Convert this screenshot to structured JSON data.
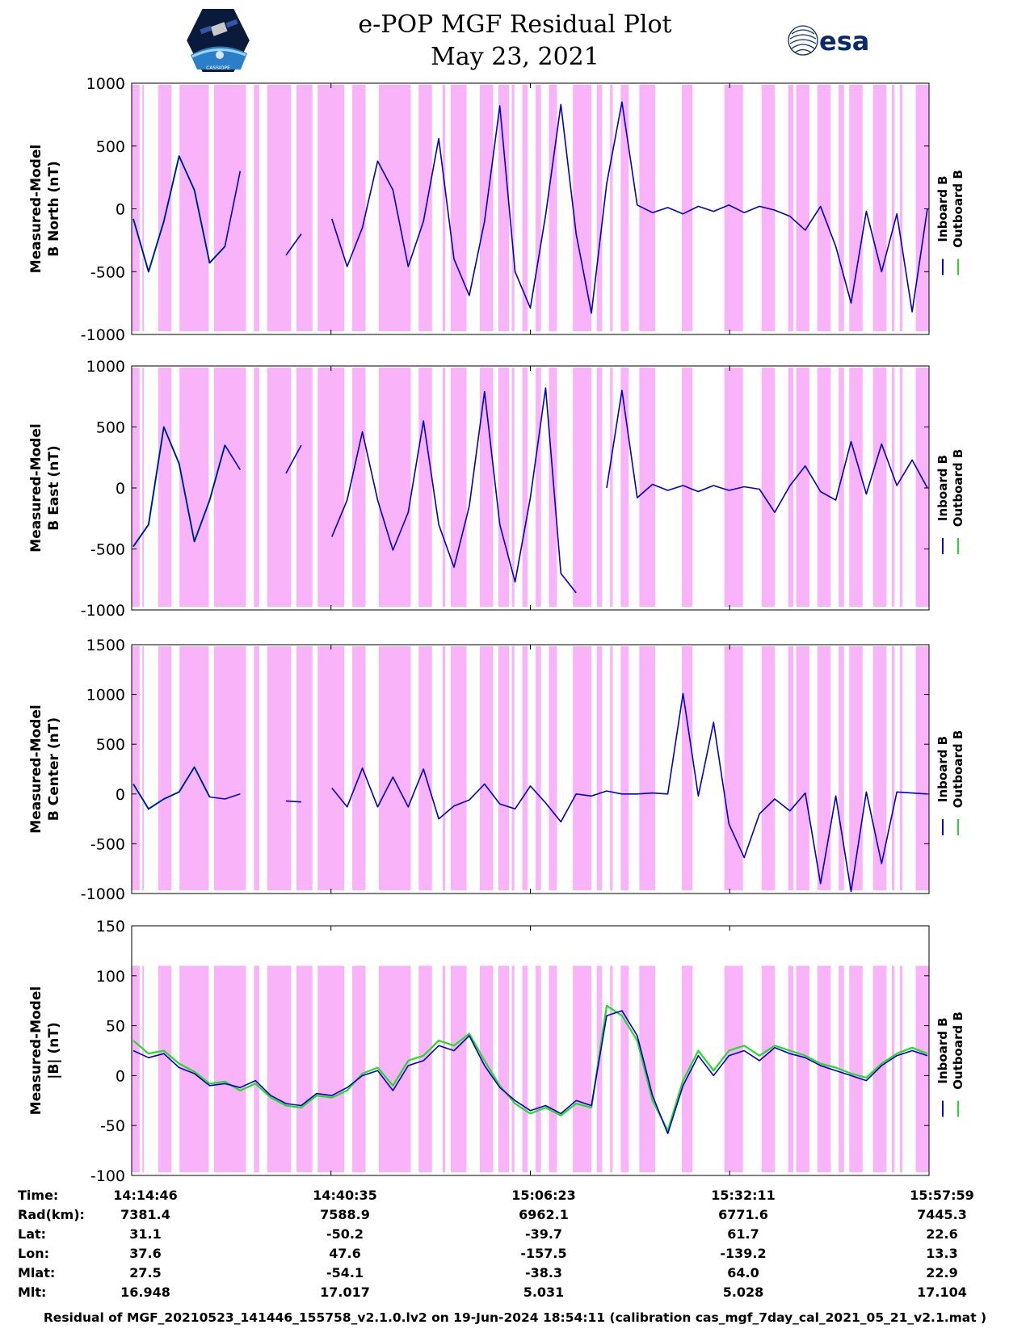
{
  "header": {
    "title_line1": "e-POP MGF Residual Plot",
    "title_line2": "May 23, 2021",
    "left_logo": "e-POP mission patch",
    "left_logo_text": "CASSIOPE",
    "right_logo": "esa-logo",
    "right_logo_text": "esa"
  },
  "colors": {
    "inboard": "#0000cc",
    "outboard": "#22dd22",
    "gap_shading": "#f9b4f9"
  },
  "legend": {
    "inboard": "Inboard B",
    "outboard": "Outboard B"
  },
  "chart_data": [
    {
      "type": "line",
      "ylabel_line1": "Measured-Model",
      "ylabel_line2": "B North (nT)",
      "ylim": [
        -1000,
        1000
      ],
      "yticks": [
        -1000,
        -500,
        0,
        500,
        1000
      ],
      "series": [
        {
          "name": "Inboard B",
          "color": "#0000cc",
          "x": [
            0,
            2,
            4,
            6,
            8,
            10,
            12,
            14,
            16,
            18,
            20,
            22,
            24,
            26,
            28,
            30,
            32,
            34,
            36,
            38,
            40,
            42,
            44,
            46,
            48,
            50,
            52,
            54,
            56,
            58,
            60,
            62,
            64,
            66,
            68,
            70,
            72,
            74,
            76,
            78,
            80,
            82,
            84,
            86,
            88,
            90,
            92,
            94,
            96,
            98,
            100,
            102,
            104
          ],
          "y": [
            -80,
            -500,
            -100,
            420,
            150,
            -430,
            -300,
            300,
            "null",
            "null",
            -370,
            -200,
            "null",
            -80,
            -460,
            -150,
            380,
            150,
            -460,
            -100,
            560,
            -400,
            -690,
            -100,
            820,
            -500,
            -790,
            -50,
            830,
            -200,
            -830,
            200,
            850,
            30,
            -30,
            10,
            -40,
            20,
            -20,
            30,
            -30,
            20,
            -10,
            -60,
            -170,
            20,
            -300,
            -750,
            -20,
            -500,
            -40,
            -820,
            0
          ]
        },
        {
          "name": "Outboard B",
          "color": "#22dd22",
          "x": [
            0,
            2,
            4,
            6,
            8,
            10,
            12
          ],
          "y": [
            -80,
            -500,
            -100,
            420,
            150,
            -430,
            -300
          ]
        }
      ]
    },
    {
      "type": "line",
      "ylabel_line1": "Measured-Model",
      "ylabel_line2": "B East (nT)",
      "ylim": [
        -1000,
        1000
      ],
      "yticks": [
        -1000,
        -500,
        0,
        500,
        1000
      ],
      "series": [
        {
          "name": "Inboard B",
          "color": "#0000cc",
          "x": [
            0,
            2,
            4,
            6,
            8,
            10,
            12,
            14,
            16,
            18,
            20,
            22,
            24,
            26,
            28,
            30,
            32,
            34,
            36,
            38,
            40,
            42,
            44,
            46,
            48,
            50,
            52,
            54,
            56,
            58,
            60,
            62,
            64,
            66,
            68,
            70,
            72,
            74,
            76,
            78,
            80,
            82,
            84,
            86,
            88,
            90,
            92,
            94,
            96,
            98,
            100,
            102,
            104
          ],
          "y": [
            -480,
            -300,
            500,
            200,
            -440,
            -100,
            350,
            150,
            "null",
            "null",
            120,
            350,
            "null",
            -400,
            -100,
            460,
            -100,
            -510,
            -200,
            550,
            -300,
            -650,
            -150,
            790,
            -300,
            -770,
            -80,
            820,
            -700,
            -860,
            "null",
            0,
            800,
            -80,
            30,
            -20,
            20,
            -30,
            20,
            -20,
            10,
            -10,
            -200,
            20,
            180,
            -30,
            -100,
            380,
            -50,
            360,
            20,
            230,
            0
          ]
        },
        {
          "name": "Outboard B",
          "color": "#22dd22",
          "x": [
            0,
            2,
            4,
            6,
            8,
            10,
            12
          ],
          "y": [
            -480,
            -300,
            500,
            200,
            -440,
            -100,
            350
          ]
        }
      ]
    },
    {
      "type": "line",
      "ylabel_line1": "Measured-Model",
      "ylabel_line2": "B Center (nT)",
      "ylim": [
        -1000,
        1500
      ],
      "yticks": [
        -1000,
        -500,
        0,
        500,
        1000,
        1500
      ],
      "series": [
        {
          "name": "Inboard B",
          "color": "#0000cc",
          "x": [
            0,
            2,
            4,
            6,
            8,
            10,
            12,
            14,
            16,
            18,
            20,
            22,
            24,
            26,
            28,
            30,
            32,
            34,
            36,
            38,
            40,
            42,
            44,
            46,
            48,
            50,
            52,
            54,
            56,
            58,
            60,
            62,
            64,
            66,
            68,
            70,
            72,
            74,
            76,
            78,
            80,
            82,
            84,
            86,
            88,
            90,
            92,
            94,
            96,
            98,
            100,
            102,
            104
          ],
          "y": [
            100,
            -150,
            -50,
            20,
            270,
            -30,
            -50,
            0,
            "null",
            "null",
            -70,
            -80,
            "null",
            60,
            -130,
            260,
            -130,
            170,
            -130,
            250,
            -250,
            -120,
            -60,
            100,
            -100,
            -150,
            80,
            -90,
            -280,
            0,
            -20,
            30,
            0,
            0,
            10,
            0,
            1010,
            -20,
            720,
            -300,
            -640,
            -200,
            -50,
            -170,
            10,
            -900,
            -20,
            -980,
            20,
            -700,
            20,
            10,
            0
          ]
        },
        {
          "name": "Outboard B",
          "color": "#22dd22",
          "x": [
            0,
            2,
            4,
            6,
            8,
            10
          ],
          "y": [
            100,
            -150,
            -50,
            20,
            270,
            -30
          ]
        }
      ]
    },
    {
      "type": "line",
      "ylabel_line1": "Measured-Model",
      "ylabel_line2": "|B| (nT)",
      "ylim": [
        -100,
        150
      ],
      "yticks": [
        -100,
        -50,
        0,
        50,
        100,
        150
      ],
      "series": [
        {
          "name": "Inboard B",
          "color": "#0000cc",
          "x": [
            0,
            2,
            4,
            6,
            8,
            10,
            12,
            14,
            16,
            18,
            20,
            22,
            24,
            26,
            28,
            30,
            32,
            34,
            36,
            38,
            40,
            42,
            44,
            46,
            48,
            50,
            52,
            54,
            56,
            58,
            60,
            62,
            64,
            66,
            68,
            70,
            72,
            74,
            76,
            78,
            80,
            82,
            84,
            86,
            88,
            90,
            92,
            94,
            96,
            98,
            100,
            102,
            104
          ],
          "y": [
            25,
            18,
            22,
            8,
            2,
            -10,
            -8,
            -12,
            -5,
            -20,
            -28,
            -30,
            -18,
            -20,
            -12,
            0,
            5,
            -15,
            10,
            15,
            30,
            25,
            40,
            10,
            -12,
            -25,
            -35,
            -30,
            -38,
            -25,
            -30,
            60,
            65,
            40,
            -20,
            -58,
            -10,
            20,
            0,
            20,
            25,
            15,
            28,
            22,
            18,
            10,
            5,
            0,
            -5,
            10,
            20,
            25,
            20
          ]
        },
        {
          "name": "Outboard B",
          "color": "#22dd22",
          "x": [
            0,
            2,
            4,
            6,
            8,
            10,
            12,
            14,
            16,
            18,
            20,
            22,
            24,
            26,
            28,
            30,
            32,
            34,
            36,
            38,
            40,
            42,
            44,
            46,
            48,
            50,
            52,
            54,
            56,
            58,
            60,
            62,
            64,
            66,
            68,
            70,
            72,
            74,
            76,
            78,
            80,
            82,
            84,
            86,
            88,
            90,
            92,
            94,
            96,
            98,
            100,
            102,
            104
          ],
          "y": [
            35,
            22,
            25,
            12,
            4,
            -8,
            -6,
            -15,
            -8,
            -22,
            -30,
            -32,
            -20,
            -22,
            -15,
            2,
            8,
            -10,
            15,
            20,
            35,
            30,
            42,
            15,
            -10,
            -28,
            -38,
            -32,
            -40,
            -28,
            -32,
            70,
            60,
            35,
            -25,
            -55,
            -5,
            25,
            5,
            25,
            30,
            20,
            30,
            25,
            20,
            12,
            8,
            2,
            -2,
            12,
            22,
            28,
            22
          ]
        }
      ]
    }
  ],
  "shading_bands": [
    [
      0,
      3
    ],
    [
      4,
      4.6
    ],
    [
      10,
      15
    ],
    [
      18,
      29
    ],
    [
      31,
      43
    ],
    [
      46,
      48
    ],
    [
      51,
      60
    ],
    [
      62,
      68
    ],
    [
      70,
      80
    ],
    [
      83,
      88
    ],
    [
      93,
      105
    ],
    [
      108,
      113
    ],
    [
      117,
      118
    ],
    [
      120,
      126
    ],
    [
      131,
      136
    ],
    [
      138,
      142
    ],
    [
      143,
      144
    ],
    [
      147,
      149
    ],
    [
      152,
      154
    ],
    [
      157,
      160
    ],
    [
      166,
      173
    ],
    [
      175,
      177
    ],
    [
      180,
      181
    ],
    [
      184,
      187
    ],
    [
      191,
      197
    ],
    [
      207,
      211
    ],
    [
      223,
      230
    ],
    [
      237,
      242
    ],
    [
      247,
      249
    ],
    [
      250,
      255
    ],
    [
      258,
      263
    ],
    [
      266,
      268
    ],
    [
      270,
      275
    ],
    [
      279,
      284
    ],
    [
      286,
      287
    ],
    [
      289,
      290
    ],
    [
      295,
      300
    ]
  ],
  "shading_max": 300,
  "x_axis": {
    "ticks_positions_label": [
      "14:14:46",
      "14:40:35",
      "15:06:23",
      "15:32:11",
      "15:57:59"
    ],
    "rows": [
      {
        "label": "Time:",
        "values": [
          "14:14:46",
          "14:40:35",
          "15:06:23",
          "15:32:11",
          "15:57:59"
        ]
      },
      {
        "label": "Rad(km):",
        "values": [
          "7381.4",
          "7588.9",
          "6962.1",
          "6771.6",
          "7445.3"
        ]
      },
      {
        "label": "Lat:",
        "values": [
          "31.1",
          "-50.2",
          "-39.7",
          "61.7",
          "22.6"
        ]
      },
      {
        "label": "Lon:",
        "values": [
          "37.6",
          "47.6",
          "-157.5",
          "-139.2",
          "13.3"
        ]
      },
      {
        "label": "Mlat:",
        "values": [
          "27.5",
          "-54.1",
          "-38.3",
          "64.0",
          "22.9"
        ]
      },
      {
        "label": "Mlt:",
        "values": [
          "16.948",
          "17.017",
          "5.031",
          "5.028",
          "17.104"
        ]
      }
    ]
  },
  "footer": "Residual of MGF_20210523_141446_155758_v2.1.0.lv2 on 19-Jun-2024 18:54:11 (calibration cas_mgf_7day_cal_2021_05_21_v2.1.mat )"
}
